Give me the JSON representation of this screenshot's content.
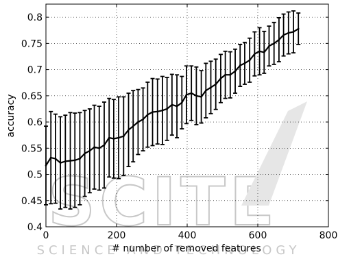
{
  "chart_data": {
    "type": "line",
    "xlabel": "# number of removed features",
    "ylabel": "accuracy",
    "xlim": [
      0,
      800
    ],
    "ylim": [
      0.4,
      0.825
    ],
    "xticks": [
      0,
      200,
      400,
      600,
      800
    ],
    "xtick_labels": [
      "0",
      "200",
      "400",
      "600",
      "800"
    ],
    "yticks": [
      0.4,
      0.45,
      0.5,
      0.55,
      0.6,
      0.65,
      0.7,
      0.75,
      0.8
    ],
    "ytick_labels": [
      "0.4",
      "0.45",
      "0.5",
      "0.55",
      "0.6",
      "0.65",
      "0.7",
      "0.75",
      "0.8"
    ],
    "grid": true,
    "line_color": "#000000",
    "series": [
      {
        "x": [
          0,
          14,
          27,
          41,
          55,
          69,
          82,
          96,
          110,
          124,
          137,
          151,
          165,
          179,
          192,
          206,
          220,
          234,
          247,
          261,
          275,
          288,
          302,
          316,
          330,
          343,
          357,
          371,
          385,
          398,
          412,
          426,
          440,
          453,
          467,
          481,
          495,
          508,
          522,
          536,
          550,
          563,
          577,
          591,
          605,
          618,
          632,
          646,
          660,
          673,
          687,
          701,
          715
        ],
        "y": [
          0.517,
          0.532,
          0.53,
          0.522,
          0.525,
          0.526,
          0.527,
          0.53,
          0.54,
          0.545,
          0.552,
          0.55,
          0.556,
          0.57,
          0.568,
          0.57,
          0.573,
          0.585,
          0.592,
          0.6,
          0.605,
          0.614,
          0.619,
          0.62,
          0.622,
          0.625,
          0.633,
          0.63,
          0.637,
          0.652,
          0.655,
          0.65,
          0.648,
          0.66,
          0.666,
          0.672,
          0.683,
          0.69,
          0.69,
          0.697,
          0.708,
          0.712,
          0.718,
          0.73,
          0.735,
          0.733,
          0.745,
          0.75,
          0.757,
          0.766,
          0.77,
          0.772,
          0.778
        ],
        "err": [
          0.075,
          0.088,
          0.085,
          0.088,
          0.088,
          0.092,
          0.09,
          0.088,
          0.082,
          0.08,
          0.08,
          0.08,
          0.082,
          0.075,
          0.075,
          0.078,
          0.075,
          0.07,
          0.068,
          0.062,
          0.06,
          0.062,
          0.064,
          0.062,
          0.065,
          0.06,
          0.058,
          0.06,
          0.05,
          0.055,
          0.052,
          0.055,
          0.05,
          0.052,
          0.05,
          0.048,
          0.046,
          0.045,
          0.044,
          0.042,
          0.04,
          0.04,
          0.042,
          0.042,
          0.045,
          0.04,
          0.038,
          0.04,
          0.042,
          0.04,
          0.04,
          0.04,
          0.03
        ]
      }
    ]
  },
  "watermark": {
    "text_main": "SCITE",
    "text_sub": "SCIENCE AND TECHNOLOGY",
    "color": "#c8c8c8"
  }
}
